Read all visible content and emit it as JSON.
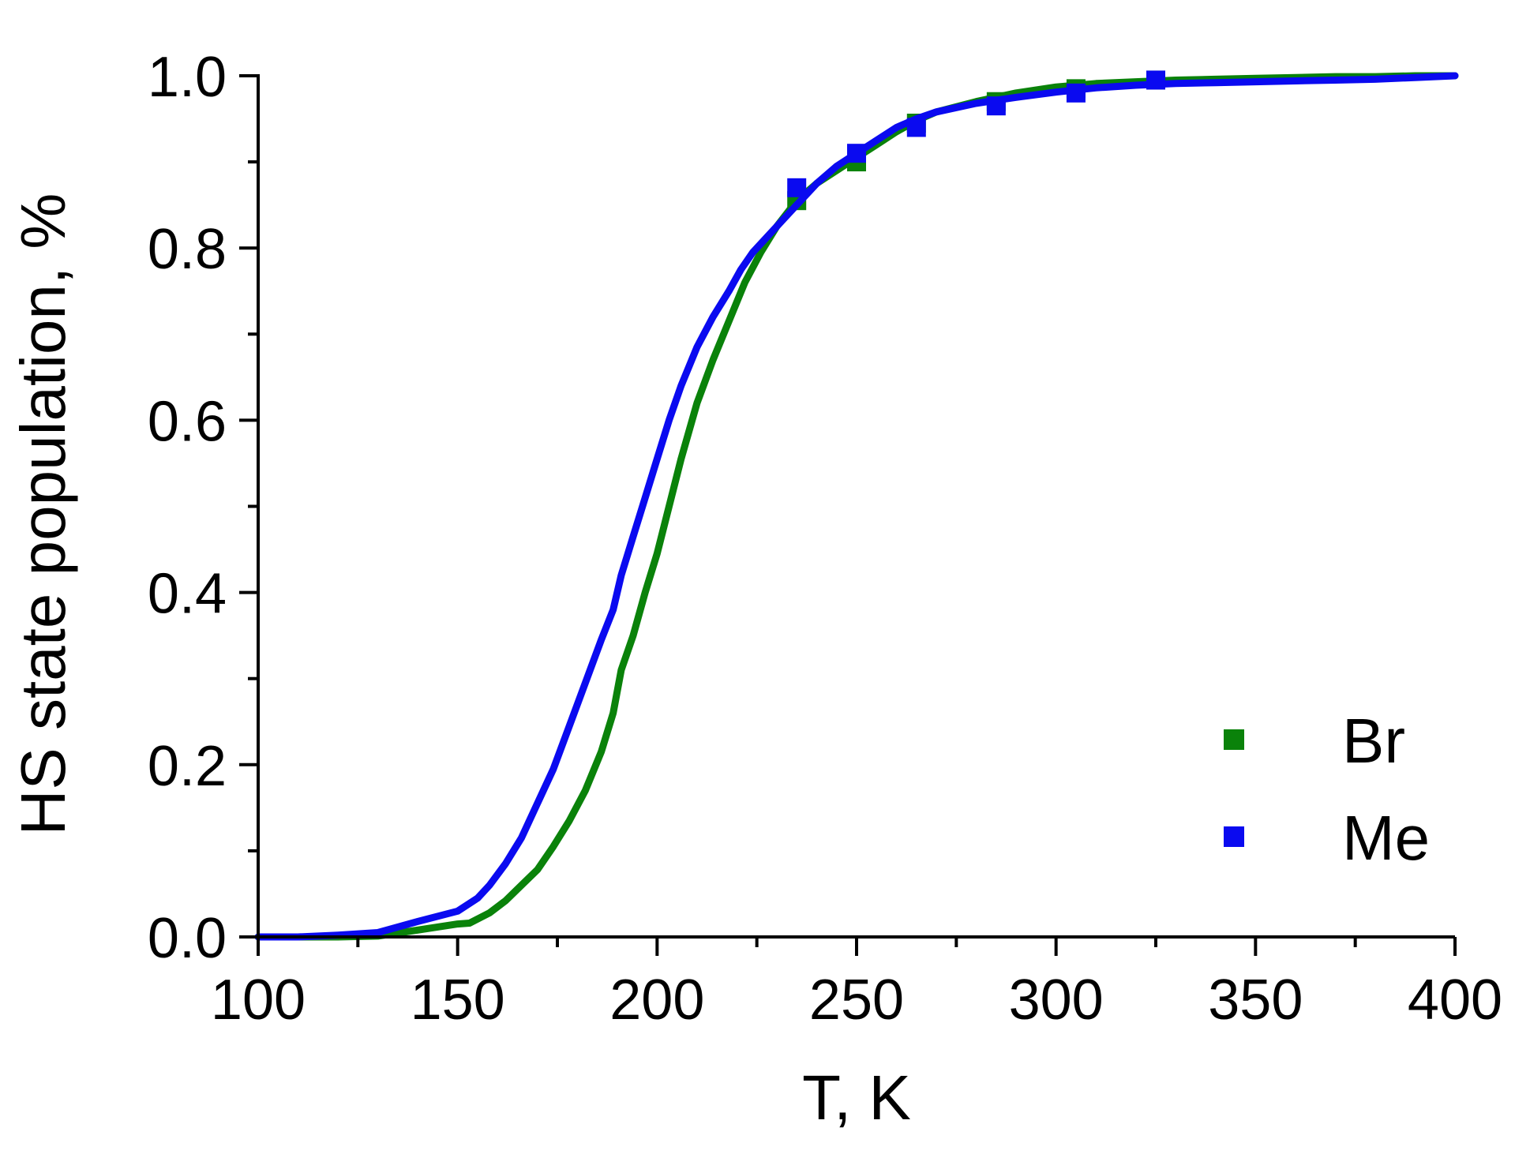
{
  "chart_data": {
    "type": "line",
    "xlabel": "T, K",
    "ylabel": "HS state population, %",
    "xlim": [
      100,
      400
    ],
    "ylim": [
      0,
      1.0
    ],
    "x_major_ticks": [
      100,
      150,
      200,
      250,
      300,
      350,
      400
    ],
    "x_minor_ticks": [
      125,
      175,
      225,
      275,
      325,
      375
    ],
    "y_major_ticks": [
      0.0,
      0.2,
      0.4,
      0.6,
      0.8,
      1.0
    ],
    "y_minor_ticks": [
      0.1,
      0.3,
      0.5,
      0.7,
      0.9
    ],
    "x_tick_labels": [
      "100",
      "150",
      "200",
      "250",
      "300",
      "350",
      "400"
    ],
    "y_tick_labels": [
      "0.0",
      "0.2",
      "0.4",
      "0.6",
      "0.8",
      "1.0"
    ],
    "grid": false,
    "legend_position": "bottom-right",
    "series": [
      {
        "name": "Br",
        "color": "#0a820a",
        "line": {
          "x": [
            100,
            110,
            120,
            130,
            140,
            150,
            153,
            158,
            162,
            166,
            170,
            174,
            178,
            182,
            186,
            189,
            191,
            194,
            197,
            200,
            203,
            206,
            210,
            214,
            218,
            222,
            226,
            230,
            235,
            240,
            245,
            250,
            255,
            260,
            265,
            270,
            280,
            290,
            300,
            310,
            320,
            330,
            340,
            350,
            360,
            370,
            380,
            390,
            400
          ],
          "y": [
            0.0,
            0.0,
            0.0,
            0.001,
            0.008,
            0.015,
            0.016,
            0.028,
            0.042,
            0.06,
            0.078,
            0.105,
            0.135,
            0.17,
            0.215,
            0.26,
            0.31,
            0.35,
            0.4,
            0.445,
            0.5,
            0.555,
            0.62,
            0.67,
            0.715,
            0.76,
            0.795,
            0.825,
            0.855,
            0.875,
            0.89,
            0.905,
            0.92,
            0.935,
            0.948,
            0.958,
            0.97,
            0.98,
            0.987,
            0.991,
            0.993,
            0.995,
            0.996,
            0.997,
            0.998,
            0.999,
            0.999,
            1.0,
            1.0
          ]
        },
        "points": {
          "x": [
            235,
            250,
            265,
            285,
            305,
            325
          ],
          "y": [
            0.855,
            0.9,
            0.945,
            0.97,
            0.985,
            0.995
          ]
        }
      },
      {
        "name": "Me",
        "color": "#0a0af0",
        "line": {
          "x": [
            100,
            110,
            120,
            130,
            140,
            150,
            155,
            158,
            162,
            166,
            170,
            174,
            178,
            182,
            186,
            189,
            191,
            194,
            197,
            200,
            203,
            206,
            210,
            214,
            218,
            221,
            224,
            228,
            232,
            235,
            240,
            245,
            250,
            255,
            260,
            265,
            270,
            280,
            290,
            300,
            310,
            320,
            330,
            340,
            350,
            360,
            370,
            380,
            390,
            400
          ],
          "y": [
            0.0,
            0.0,
            0.002,
            0.005,
            0.018,
            0.03,
            0.045,
            0.06,
            0.085,
            0.115,
            0.155,
            0.195,
            0.245,
            0.295,
            0.345,
            0.38,
            0.42,
            0.465,
            0.51,
            0.555,
            0.6,
            0.64,
            0.685,
            0.72,
            0.75,
            0.775,
            0.795,
            0.815,
            0.835,
            0.85,
            0.875,
            0.895,
            0.91,
            0.925,
            0.94,
            0.95,
            0.958,
            0.968,
            0.975,
            0.981,
            0.986,
            0.989,
            0.991,
            0.992,
            0.993,
            0.994,
            0.995,
            0.996,
            0.998,
            1.0
          ]
        },
        "points": {
          "x": [
            235,
            250,
            265,
            285,
            305,
            325
          ],
          "y": [
            0.87,
            0.91,
            0.94,
            0.965,
            0.98,
            0.995
          ]
        }
      }
    ]
  }
}
